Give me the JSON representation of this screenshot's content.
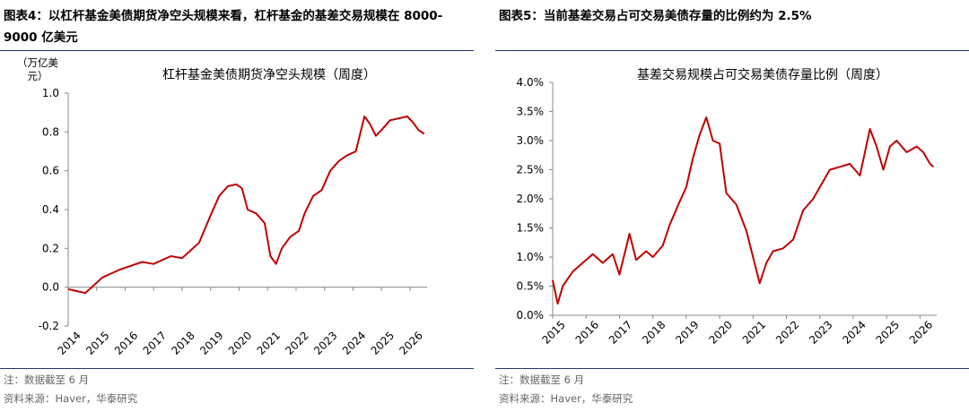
{
  "figures": [
    {
      "figure_label": "图表4：",
      "figure_title": "以杠杆基金美债期货净空头规模来看，杠杆基金的基差交易规模在 8000-9000 亿美元",
      "note": "注：数据截至 6 月",
      "source": "资料来源：Haver，华泰研究"
    },
    {
      "figure_label": "图表5：",
      "figure_title": "当前基差交易占可交易美债存量的比例约为 2.5%",
      "note": "注：数据截至 6 月",
      "source": "资料来源：Haver，华泰研究"
    }
  ],
  "chart_data": [
    {
      "type": "line",
      "title": "杠杆基金美债期货净空头规模（周度）",
      "ylabel": "（万亿美元）",
      "xlabel": "",
      "ylim": [
        -0.2,
        1.0
      ],
      "xlim": [
        2014.0,
        2026.6
      ],
      "y_ticks": [
        "-0.2",
        "0.0",
        "0.2",
        "0.4",
        "0.6",
        "0.8",
        "1.0"
      ],
      "x_ticks": [
        "2014",
        "2015",
        "2016",
        "2017",
        "2018",
        "2019",
        "2020",
        "2021",
        "2022",
        "2023",
        "2024",
        "2025",
        "2026"
      ],
      "grid": false,
      "color": "#c00000",
      "series": [
        {
          "x": [
            2014.0,
            2014.3,
            2014.6,
            2014.9,
            2015.2,
            2015.5,
            2015.8,
            2016.2,
            2016.6,
            2017.0,
            2017.3,
            2017.6,
            2018.0,
            2018.3,
            2018.6,
            2019.0,
            2019.3,
            2019.6,
            2019.9,
            2020.1,
            2020.3,
            2020.6,
            2020.9,
            2021.1,
            2021.3,
            2021.5,
            2021.8,
            2022.1,
            2022.3,
            2022.6,
            2022.9,
            2023.2,
            2023.5,
            2023.8,
            2024.1,
            2024.4,
            2024.6,
            2024.8,
            2025.0,
            2025.3,
            2025.6,
            2025.9,
            2026.1,
            2026.3,
            2026.5
          ],
          "y": [
            -0.01,
            -0.02,
            -0.03,
            0.01,
            0.05,
            0.07,
            0.09,
            0.11,
            0.13,
            0.12,
            0.14,
            0.16,
            0.15,
            0.19,
            0.23,
            0.37,
            0.47,
            0.52,
            0.53,
            0.51,
            0.4,
            0.38,
            0.33,
            0.16,
            0.12,
            0.2,
            0.26,
            0.29,
            0.38,
            0.47,
            0.5,
            0.6,
            0.65,
            0.68,
            0.7,
            0.88,
            0.84,
            0.78,
            0.81,
            0.86,
            0.87,
            0.88,
            0.85,
            0.81,
            0.79
          ]
        }
      ]
    },
    {
      "type": "line",
      "title": "基差交易规模占可交易美债存量比例（周度）",
      "ylabel": "",
      "xlabel": "",
      "ylim": [
        0.0,
        4.0
      ],
      "xlim": [
        2015.0,
        2026.5
      ],
      "y_ticks": [
        "0.0%",
        "0.5%",
        "1.0%",
        "1.5%",
        "2.0%",
        "2.5%",
        "3.0%",
        "3.5%",
        "4.0%"
      ],
      "x_ticks": [
        "2015",
        "2016",
        "2017",
        "2018",
        "2019",
        "2020",
        "2021",
        "2022",
        "2023",
        "2024",
        "2025",
        "2026"
      ],
      "grid": false,
      "color": "#c00000",
      "series": [
        {
          "x": [
            2015.0,
            2015.15,
            2015.3,
            2015.6,
            2015.9,
            2016.2,
            2016.5,
            2016.8,
            2017.0,
            2017.3,
            2017.5,
            2017.8,
            2018.0,
            2018.3,
            2018.5,
            2018.8,
            2019.0,
            2019.2,
            2019.4,
            2019.6,
            2019.8,
            2020.0,
            2020.2,
            2020.5,
            2020.8,
            2021.0,
            2021.2,
            2021.4,
            2021.6,
            2021.9,
            2022.2,
            2022.5,
            2022.8,
            2023.0,
            2023.3,
            2023.6,
            2023.9,
            2024.2,
            2024.5,
            2024.7,
            2024.9,
            2025.1,
            2025.3,
            2025.6,
            2025.9,
            2026.1,
            2026.3,
            2026.4
          ],
          "y": [
            0.6,
            0.2,
            0.5,
            0.75,
            0.9,
            1.05,
            0.9,
            1.05,
            0.7,
            1.4,
            0.95,
            1.1,
            1.0,
            1.2,
            1.55,
            1.95,
            2.2,
            2.7,
            3.1,
            3.4,
            3.0,
            2.95,
            2.1,
            1.9,
            1.45,
            1.0,
            0.55,
            0.9,
            1.1,
            1.15,
            1.3,
            1.8,
            2.0,
            2.2,
            2.5,
            2.55,
            2.6,
            2.4,
            3.2,
            2.9,
            2.5,
            2.9,
            3.0,
            2.8,
            2.9,
            2.8,
            2.6,
            2.55
          ]
        }
      ]
    }
  ]
}
